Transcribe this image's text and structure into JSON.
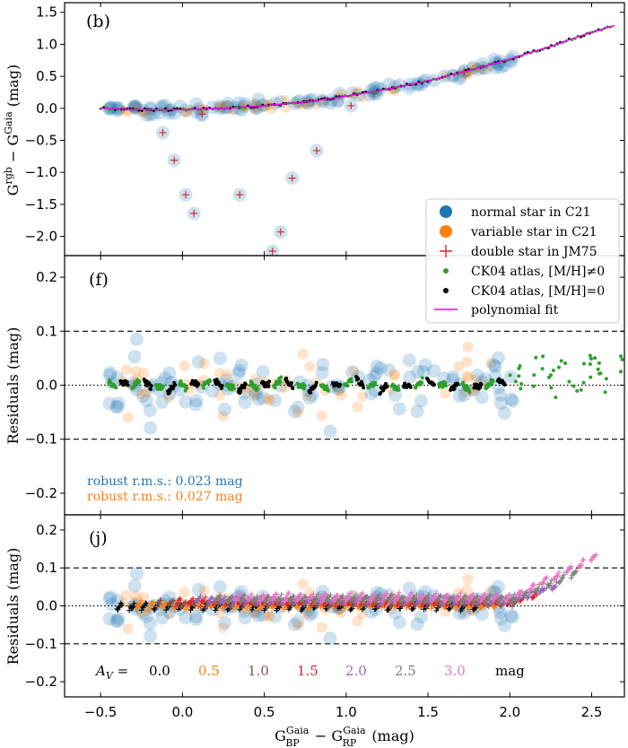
{
  "chart_data": [
    {
      "type": "scatter",
      "panel": "(b)",
      "ylabel": "G^rgb − G^Gaia  (mag)",
      "xlim": [
        -0.72,
        2.7
      ],
      "ylim": [
        -2.3,
        1.65
      ],
      "yticks": [
        -2.0,
        -1.5,
        -1.0,
        -0.5,
        0.0,
        0.5,
        1.0,
        1.5
      ],
      "ytick_labels": [
        "−2.0",
        "−1.5",
        "−1.0",
        "−0.5",
        "0.0",
        "0.5",
        "1.0",
        "1.5"
      ],
      "legend": {
        "placement": "lower-right",
        "entries": [
          {
            "label": "normal star in C21",
            "marker": "circle",
            "color": "#1f77b4"
          },
          {
            "label": "variable star in C21",
            "marker": "circle",
            "color": "#ff7f0e"
          },
          {
            "label": "double star in JM75",
            "marker": "plus",
            "color": "#d62728"
          },
          {
            "label": "CK04 atlas, [M/H]≠0",
            "marker": "dot",
            "color": "#2ca02c"
          },
          {
            "label": "CK04 atlas, [M/H]=0",
            "marker": "dot",
            "color": "#000000"
          },
          {
            "label": "polynomial fit",
            "marker": "line",
            "color": "#ee00ee"
          }
        ]
      },
      "polynomial_fit": {
        "x": [
          -0.5,
          -0.25,
          0.0,
          0.25,
          0.5,
          0.75,
          1.0,
          1.25,
          1.5,
          1.75,
          2.0,
          2.25,
          2.5,
          2.65
        ],
        "y": [
          0.0,
          -0.02,
          -0.02,
          0.0,
          0.04,
          0.1,
          0.19,
          0.3,
          0.43,
          0.59,
          0.77,
          0.97,
          1.19,
          1.3
        ]
      },
      "double_stars": {
        "x": [
          -0.12,
          -0.05,
          0.02,
          0.07,
          0.12,
          0.35,
          0.55,
          0.6,
          0.67,
          0.82,
          1.03,
          1.17,
          1.72
        ],
        "y": [
          -0.38,
          -0.81,
          -1.35,
          -1.64,
          -0.09,
          -1.35,
          -2.23,
          -1.93,
          -1.09,
          -0.66,
          0.04,
          0.23,
          0.57
        ]
      }
    },
    {
      "type": "scatter",
      "panel": "(f)",
      "ylabel": "Residuals  (mag)",
      "xlim": [
        -0.72,
        2.7
      ],
      "ylim": [
        -0.24,
        0.24
      ],
      "yticks": [
        -0.2,
        -0.1,
        0.0,
        0.1,
        0.2
      ],
      "ytick_labels": [
        "−0.2",
        "−0.1",
        "0.0",
        "0.1",
        "0.2"
      ],
      "reference_lines": {
        "dashed": [
          -0.1,
          0.1
        ],
        "dotted": [
          0.0
        ]
      },
      "annotations": [
        {
          "text": "robust r.m.s.: 0.023 mag",
          "color": "#1f77b4"
        },
        {
          "text": "robust r.m.s.: 0.027 mag",
          "color": "#ff7f0e"
        }
      ]
    },
    {
      "type": "scatter",
      "panel": "(j)",
      "ylabel": "Residuals  (mag)",
      "xlabel": "G_BP^Gaia − G_RP^Gaia  (mag)",
      "xlim": [
        -0.72,
        2.7
      ],
      "ylim": [
        -0.24,
        0.24
      ],
      "xticks": [
        -0.5,
        0.0,
        0.5,
        1.0,
        1.5,
        2.0,
        2.5
      ],
      "xtick_labels": [
        "−0.5",
        "0.0",
        "0.5",
        "1.0",
        "1.5",
        "2.0",
        "2.5"
      ],
      "yticks": [
        -0.2,
        -0.1,
        0.0,
        0.1,
        0.2
      ],
      "ytick_labels": [
        "−0.2",
        "−0.1",
        "0.0",
        "0.1",
        "0.2"
      ],
      "reference_lines": {
        "dashed": [
          -0.1,
          0.1
        ],
        "dotted": [
          0.0
        ]
      },
      "extinction_label": "A_V =",
      "extinction_series": [
        {
          "name": "0.0",
          "color": "#000000"
        },
        {
          "name": "0.5",
          "color": "#ff7f0e"
        },
        {
          "name": "1.0",
          "color": "#8c564b"
        },
        {
          "name": "1.5",
          "color": "#d62728"
        },
        {
          "name": "2.0",
          "color": "#9467bd"
        },
        {
          "name": "2.5",
          "color": "#7f7f7f"
        },
        {
          "name": "3.0",
          "color": "#e377c2"
        }
      ],
      "extinction_unit": "mag"
    }
  ]
}
